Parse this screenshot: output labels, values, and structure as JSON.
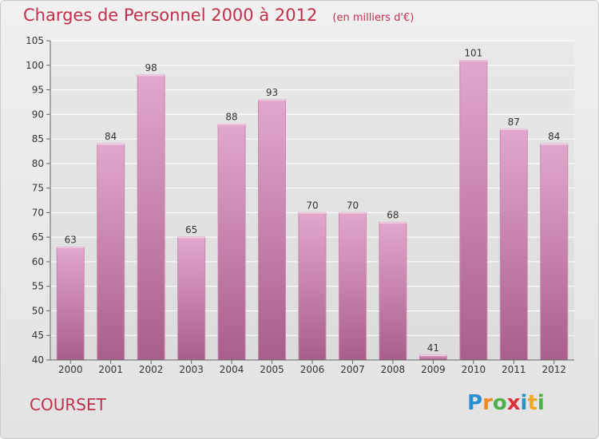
{
  "title": "Charges de Personnel 2000 à 2012",
  "subtitle": "(en milliers d'€)",
  "commune": "COURSET",
  "logo": {
    "letters": [
      "P",
      "r",
      "o",
      "x",
      "i",
      "t",
      "i"
    ],
    "colors": [
      "#2b8fd6",
      "#f08a1c",
      "#4db04a",
      "#d9303a",
      "#2b8fd6",
      "#f0a81c",
      "#4db04a"
    ]
  },
  "chart_data": {
    "type": "bar",
    "categories": [
      "2000",
      "2001",
      "2002",
      "2003",
      "2004",
      "2005",
      "2006",
      "2007",
      "2008",
      "2009",
      "2010",
      "2011",
      "2012"
    ],
    "values": [
      63,
      84,
      98,
      65,
      88,
      93,
      70,
      70,
      68,
      41,
      101,
      87,
      84
    ],
    "ylim": [
      40,
      105
    ],
    "yticks": [
      40,
      45,
      50,
      55,
      60,
      65,
      70,
      75,
      80,
      85,
      90,
      95,
      100,
      105
    ],
    "grid": true,
    "bar_color": "#d98fb8"
  }
}
